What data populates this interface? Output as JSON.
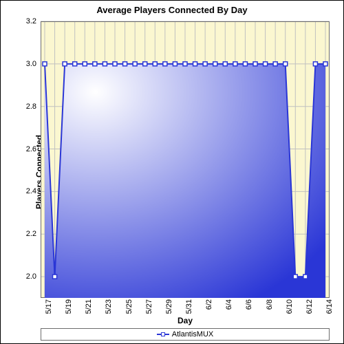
{
  "chart": {
    "type": "line-area",
    "title": "Average Players Connected By Day",
    "title_fontsize": 13,
    "title_fontweight": "bold",
    "xlabel": "Day",
    "ylabel": "Players Connected",
    "label_fontsize": 12,
    "tick_fontsize": 11,
    "plot_bg_color": "#fbf7d0",
    "frame_bg_color": "#ffffff",
    "grid_color": "#c0c0c0",
    "border_color": "#6b6b6b",
    "area_fill_start": "#ffffff",
    "area_fill_end": "#2a36d6",
    "line_color": "#2a36d6",
    "line_width": 2,
    "marker_stroke": "#2a36d6",
    "marker_fill": "#ffffff",
    "marker_size": 6,
    "marker_shape": "square",
    "ylim": [
      1.9,
      3.2
    ],
    "ytick_step": 0.2,
    "yticks": [
      2.0,
      2.2,
      2.4,
      2.6,
      2.8,
      3.0,
      3.2
    ],
    "categories": [
      "5/17",
      "5/18",
      "5/19",
      "5/20",
      "5/21",
      "5/22",
      "5/23",
      "5/24",
      "5/25",
      "5/26",
      "5/27",
      "5/28",
      "5/29",
      "5/30",
      "5/31",
      "6/1",
      "6/2",
      "6/3",
      "6/4",
      "6/5",
      "6/6",
      "6/7",
      "6/8",
      "6/9",
      "6/10",
      "6/11",
      "6/12",
      "6/13",
      "6/14"
    ],
    "xtick_every": 2,
    "series": [
      {
        "name": "AtlantisMUX",
        "values": [
          3,
          2,
          3,
          3,
          3,
          3,
          3,
          3,
          3,
          3,
          3,
          3,
          3,
          3,
          3,
          3,
          3,
          3,
          3,
          3,
          3,
          3,
          3,
          3,
          3,
          2,
          2,
          3,
          3
        ]
      }
    ]
  },
  "legend": {
    "label": "AtlantisMUX"
  }
}
